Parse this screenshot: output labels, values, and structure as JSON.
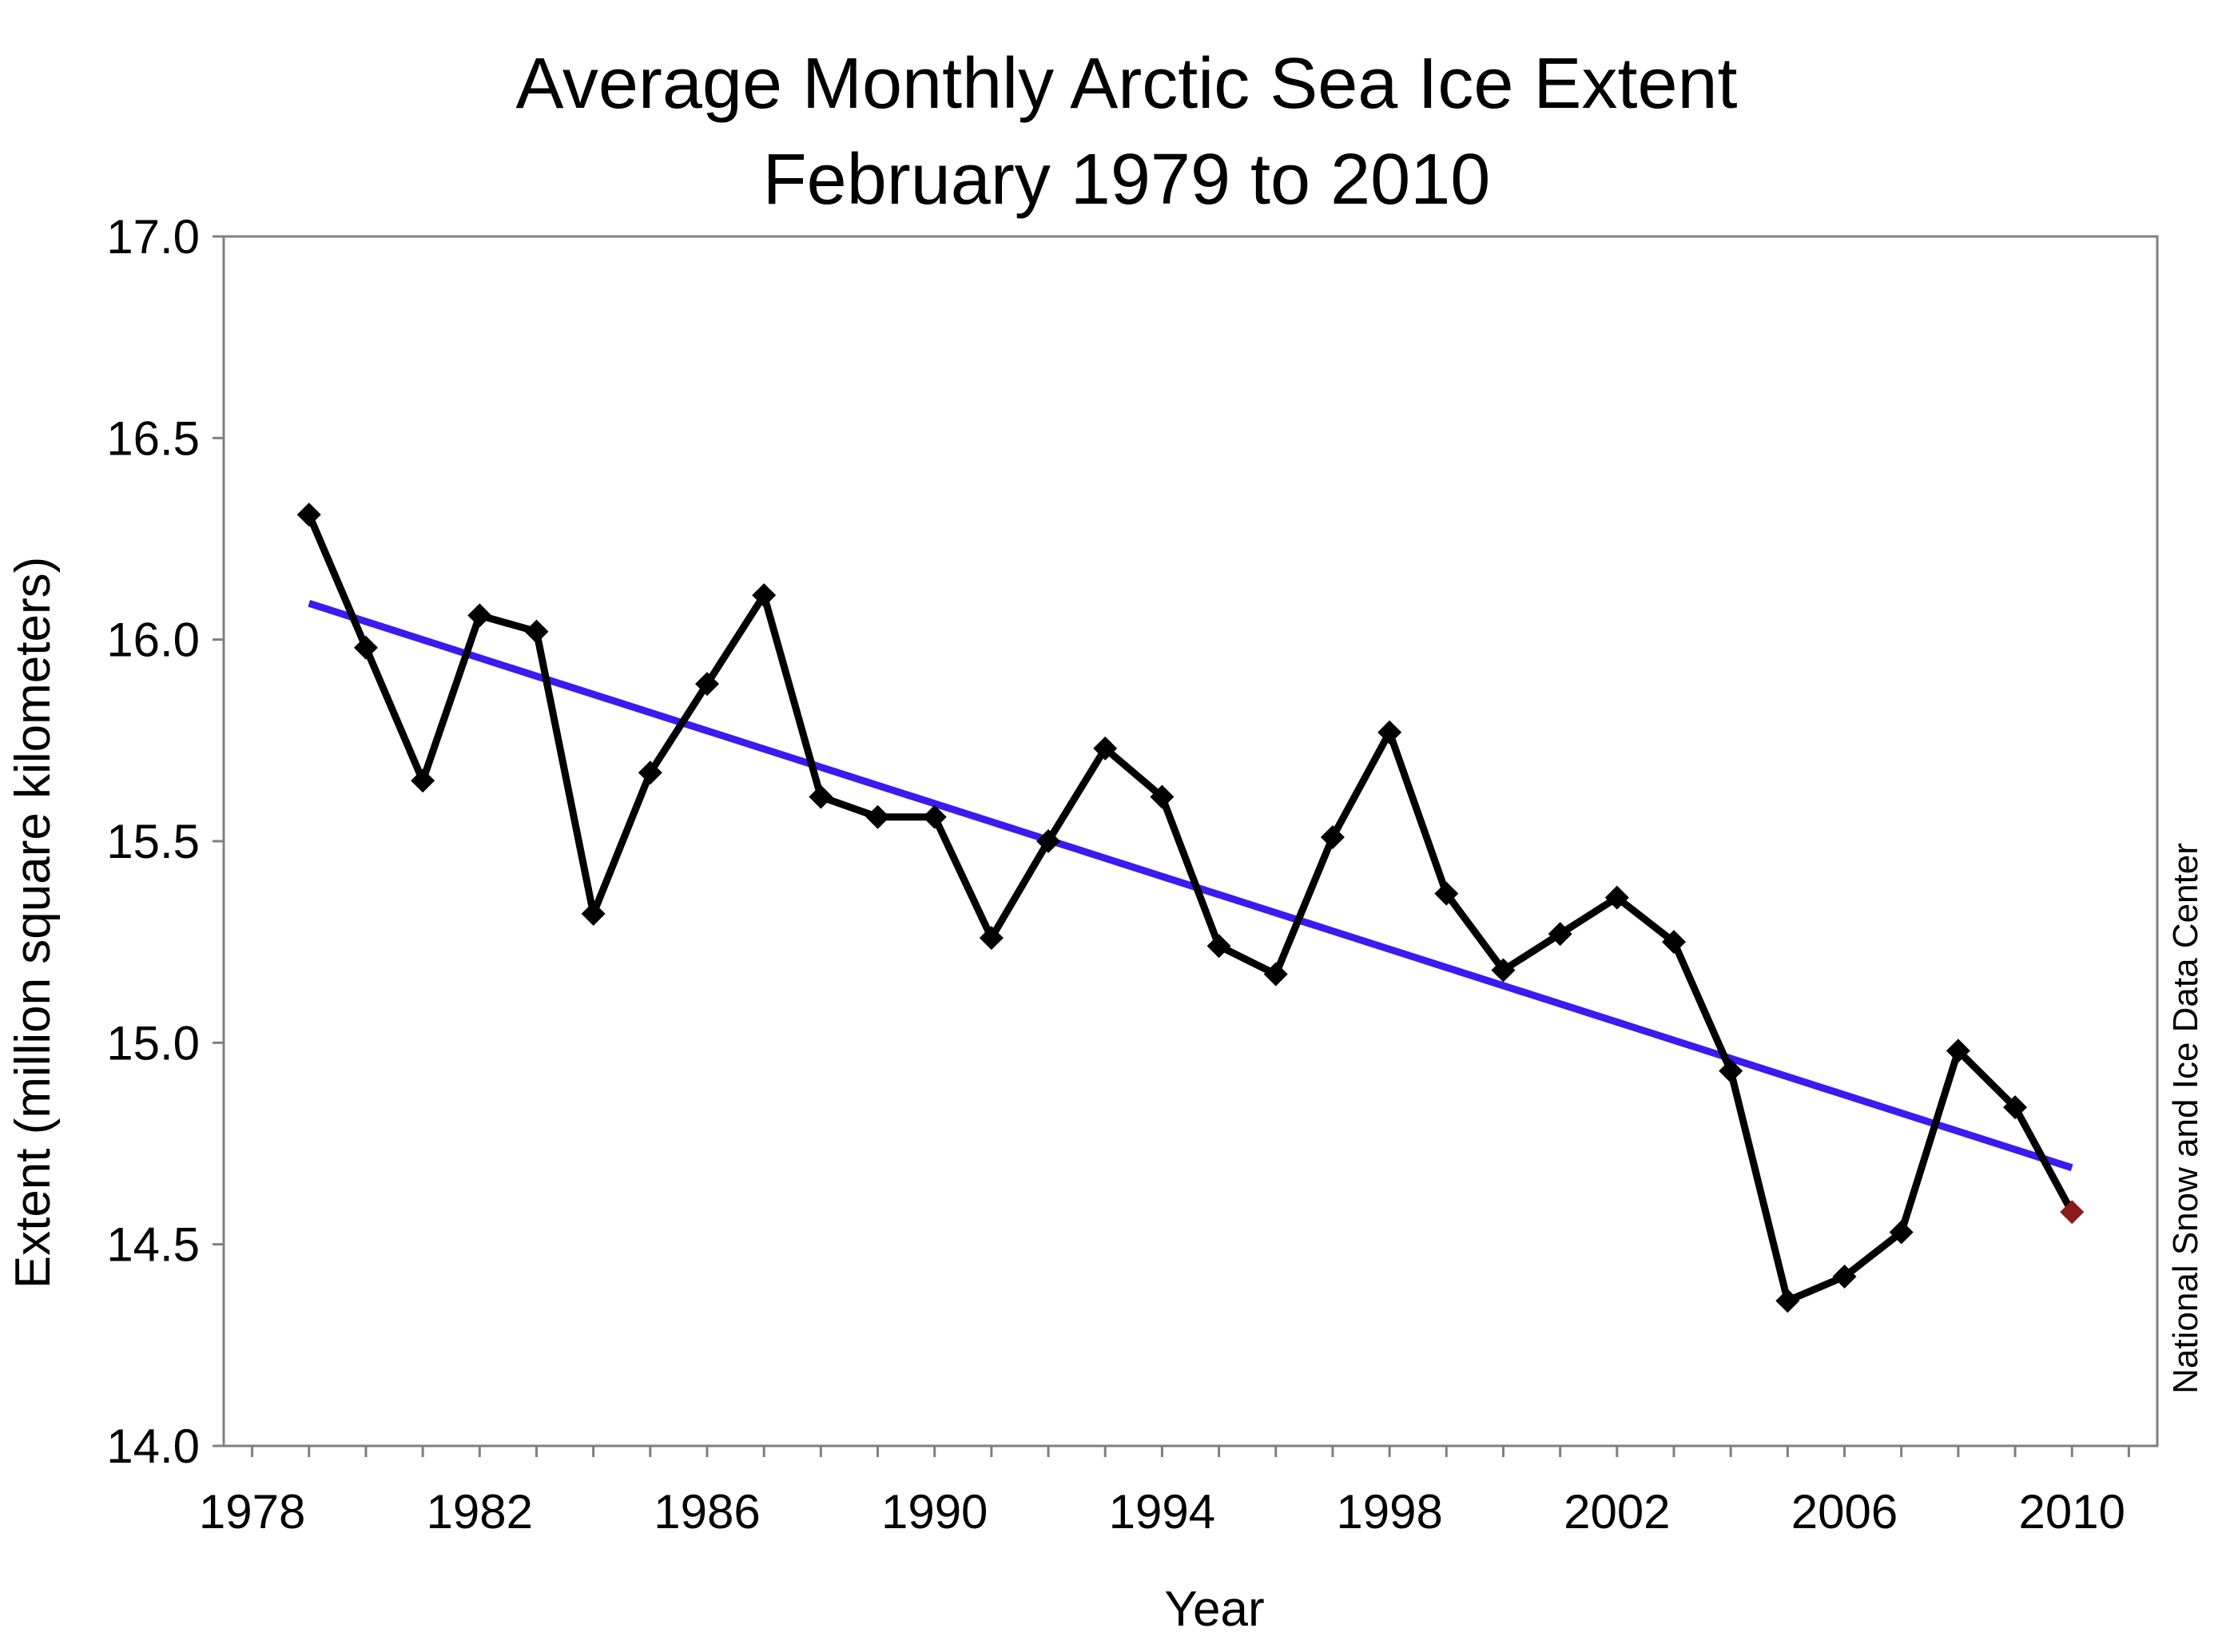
{
  "chart_data": {
    "type": "line",
    "title": "Average Monthly Arctic Sea Ice Extent",
    "subtitle": "February 1979 to 2010",
    "xlabel": "Year",
    "ylabel": "Extent (million square kilometers)",
    "credit": "National Snow and Ice Data Center",
    "xlim": [
      1977.5,
      2011.5
    ],
    "ylim": [
      14.0,
      17.0
    ],
    "x_ticks": [
      1978,
      1982,
      1986,
      1990,
      1994,
      1998,
      2002,
      2006,
      2010
    ],
    "x_tick_labels": [
      "1978",
      "1982",
      "1986",
      "1990",
      "1994",
      "1998",
      "2002",
      "2006",
      "2010"
    ],
    "y_ticks": [
      14.0,
      14.5,
      15.0,
      15.5,
      16.0,
      16.5,
      17.0
    ],
    "y_tick_labels": [
      "14.0",
      "14.5",
      "15.0",
      "15.5",
      "16.0",
      "16.5",
      "17.0"
    ],
    "grid": false,
    "legend": "none",
    "series": [
      {
        "color": "#000000",
        "marker": "diamond",
        "highlight_last_color": "#8b1a1a",
        "x": [
          1979,
          1980,
          1981,
          1982,
          1983,
          1984,
          1985,
          1986,
          1987,
          1988,
          1989,
          1990,
          1991,
          1992,
          1993,
          1994,
          1995,
          1996,
          1997,
          1998,
          1999,
          2000,
          2001,
          2002,
          2003,
          2004,
          2005,
          2006,
          2007,
          2008,
          2009,
          2010
        ],
        "y": [
          16.31,
          15.98,
          15.65,
          16.06,
          16.02,
          15.32,
          15.67,
          15.89,
          16.11,
          15.61,
          15.56,
          15.56,
          15.26,
          15.5,
          15.73,
          15.61,
          15.24,
          15.17,
          15.51,
          15.77,
          15.37,
          15.18,
          15.27,
          15.36,
          15.25,
          14.93,
          14.36,
          14.42,
          14.53,
          14.98,
          14.84,
          14.58
        ]
      },
      {
        "type": "trend",
        "color": "#3a1cf0",
        "x": [
          1979,
          2010
        ],
        "y": [
          16.09,
          14.69
        ]
      }
    ]
  }
}
